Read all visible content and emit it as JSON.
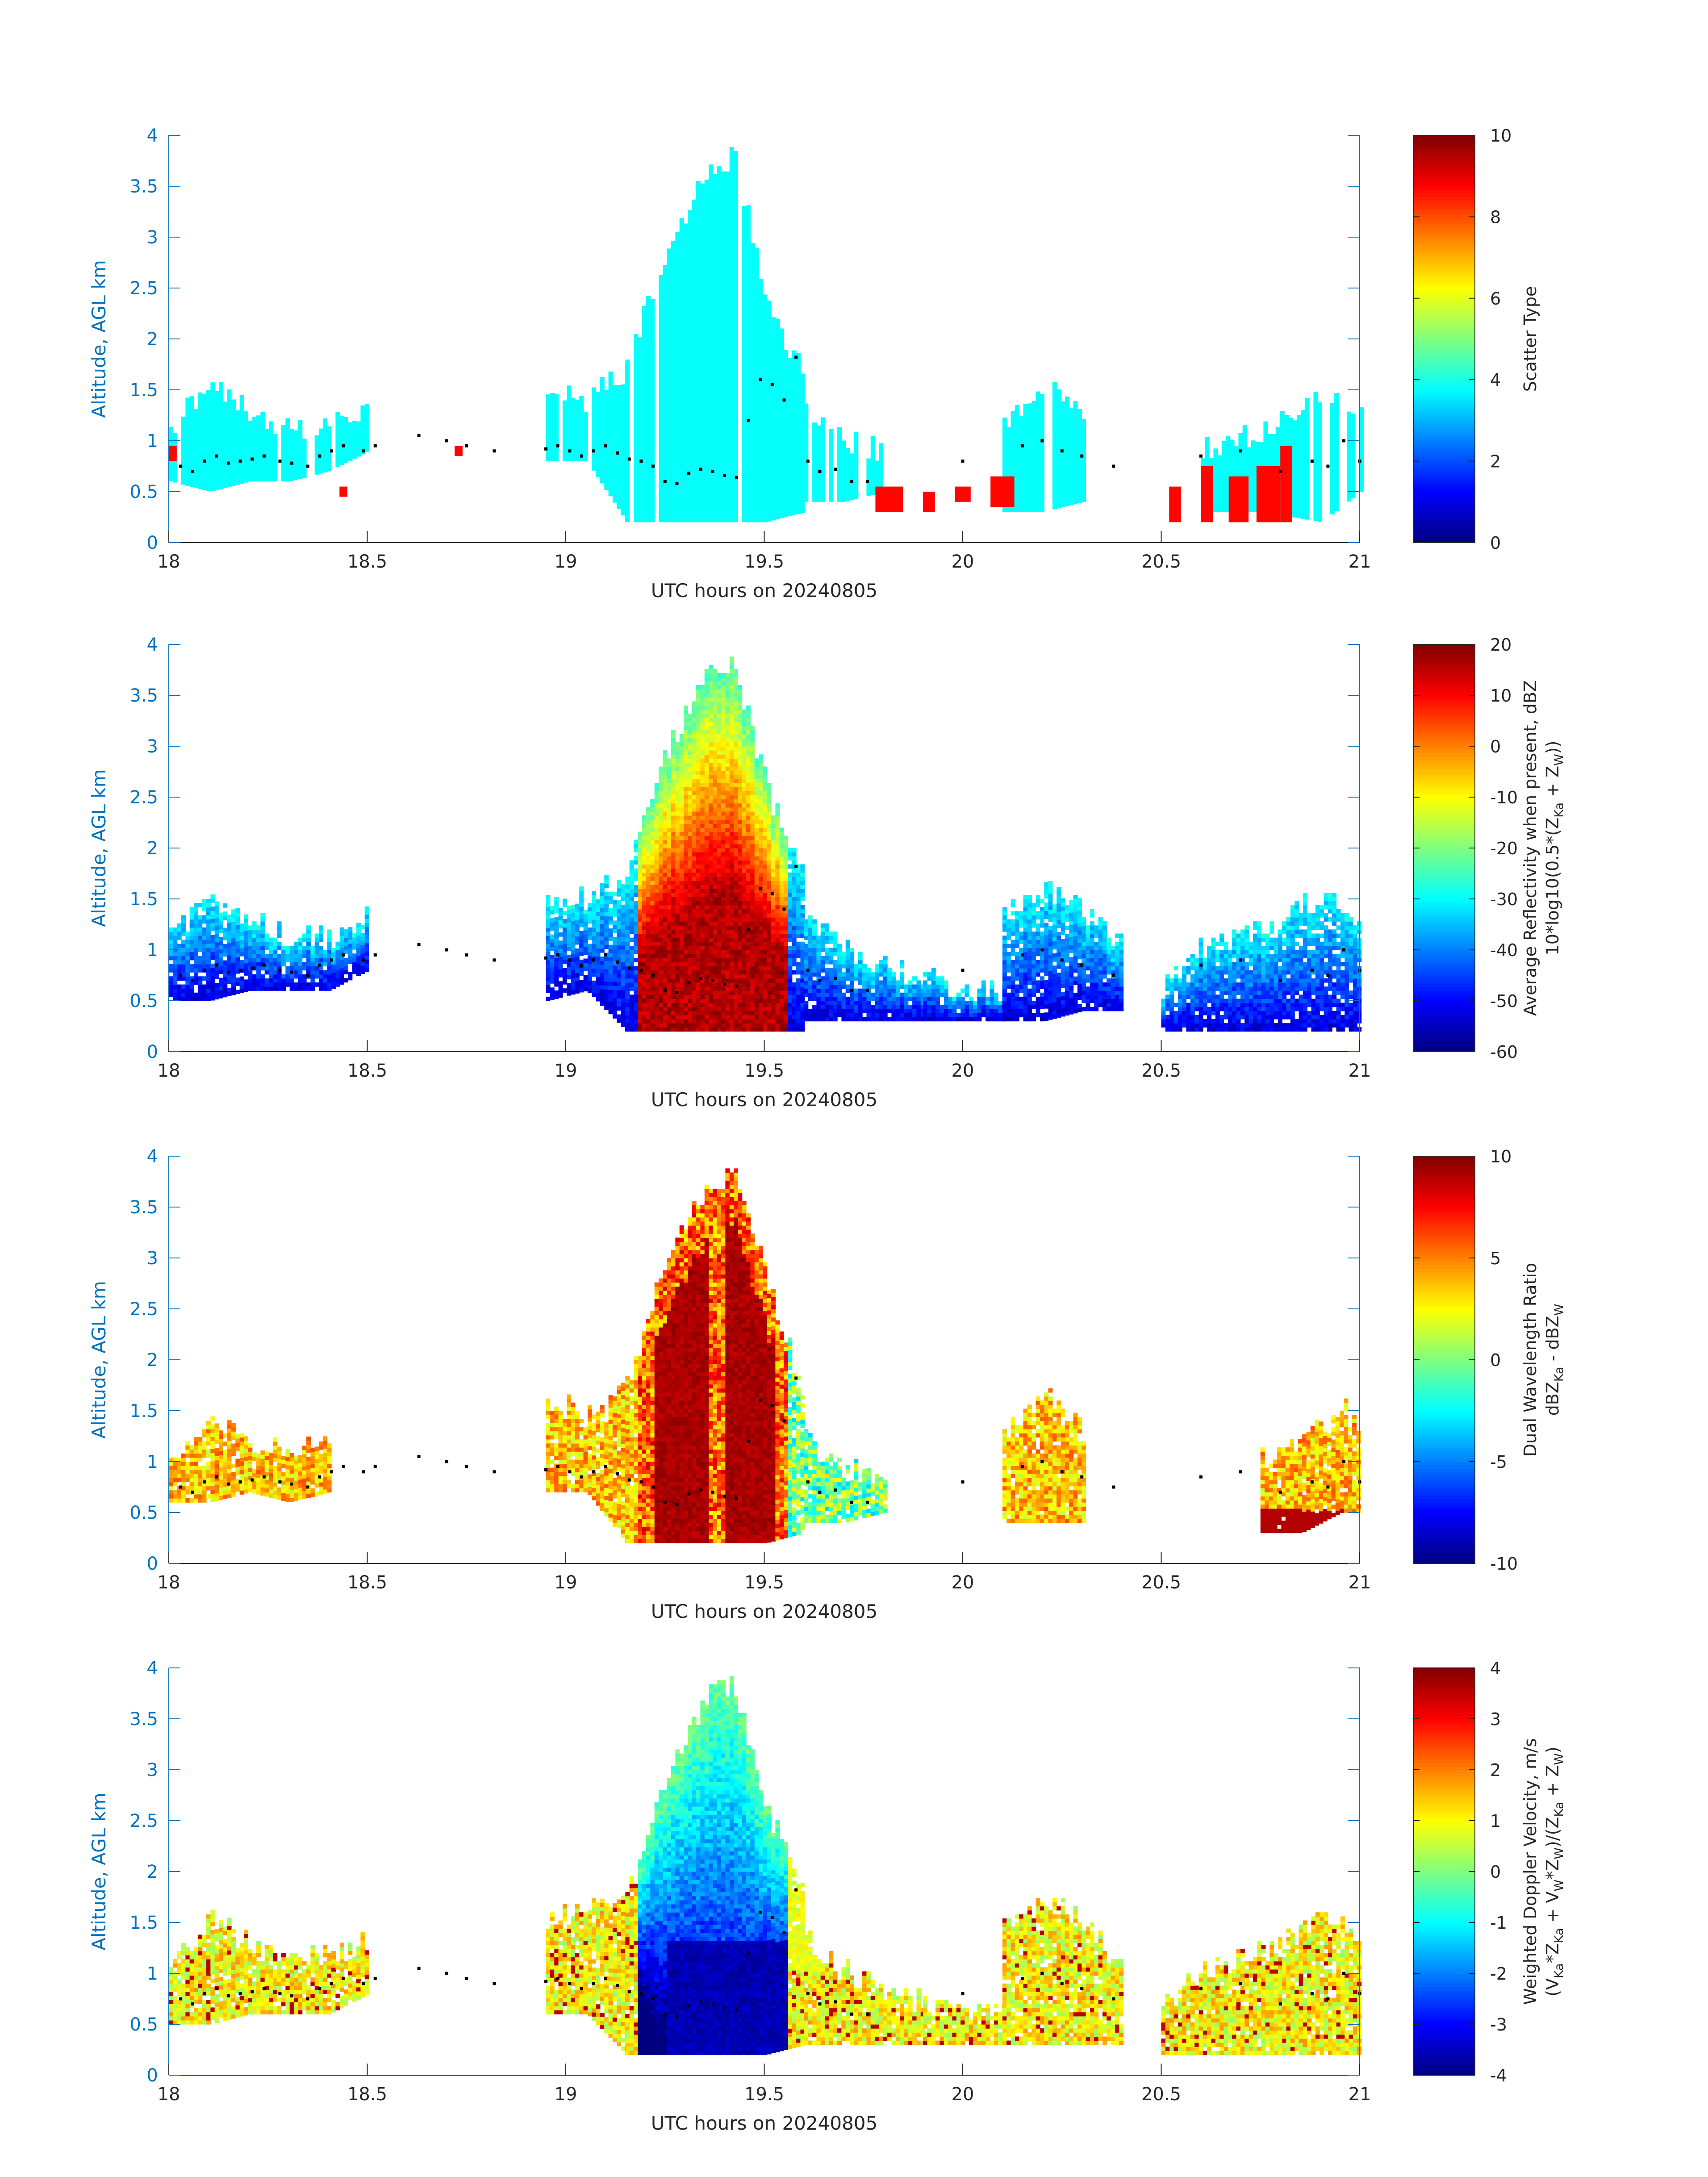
{
  "figure": {
    "axis_color": "#0072BD",
    "colormap": "jet",
    "marker_color": "#000000"
  },
  "chart_data": [
    {
      "type": "heatmap",
      "title": "",
      "xlabel": "UTC hours on 20240805",
      "ylabel": "Altitude, AGL km",
      "xlim": [
        18,
        21
      ],
      "ylim": [
        0,
        4
      ],
      "xticks": [
        "18",
        "18.5",
        "19",
        "19.5",
        "20",
        "20.5",
        "21"
      ],
      "yticks": [
        "0",
        "0.5",
        "1",
        "1.5",
        "2",
        "2.5",
        "3",
        "3.5",
        "4"
      ],
      "colorbar": {
        "label_lines": [
          "Scatter Type"
        ],
        "range": [
          0,
          10
        ],
        "ticks": [
          "0",
          "2",
          "4",
          "6",
          "8",
          "10"
        ]
      },
      "field": "scatter_type",
      "cloud_layers": [
        {
          "x": [
            18.0,
            18.1,
            18.2,
            18.3,
            18.4,
            18.5
          ],
          "base": [
            0.6,
            0.5,
            0.6,
            0.6,
            0.7,
            0.9
          ],
          "top": [
            1.1,
            1.6,
            1.3,
            1.1,
            1.2,
            1.3
          ]
        },
        {
          "x": [
            18.95,
            19.05,
            19.15
          ],
          "base": [
            0.8,
            0.8,
            0.2
          ],
          "top": [
            1.5,
            1.4,
            1.7
          ]
        },
        {
          "x": [
            19.15,
            19.25,
            19.35,
            19.42,
            19.5,
            19.6
          ],
          "base": [
            0.2,
            0.2,
            0.2,
            0.2,
            0.2,
            0.3
          ],
          "top": [
            1.7,
            2.9,
            3.6,
            3.8,
            2.4,
            1.6
          ]
        },
        {
          "x": [
            19.6,
            19.7,
            19.8
          ],
          "base": [
            0.4,
            0.4,
            0.5
          ],
          "top": [
            1.3,
            1.0,
            0.9
          ]
        },
        {
          "x": [
            20.1,
            20.2,
            20.3
          ],
          "base": [
            0.3,
            0.3,
            0.4
          ],
          "top": [
            1.2,
            1.6,
            1.3
          ]
        },
        {
          "x": [
            20.6,
            20.75,
            20.9,
            21.0
          ],
          "base": [
            0.3,
            0.3,
            0.2,
            0.5
          ],
          "top": [
            0.9,
            1.1,
            1.4,
            1.3
          ]
        }
      ],
      "rain_cells": [
        {
          "x": [
            18.0,
            18.02
          ],
          "base": 0.8,
          "top": 0.95
        },
        {
          "x": [
            18.43,
            18.45
          ],
          "base": 0.45,
          "top": 0.55
        },
        {
          "x": [
            18.72,
            18.74
          ],
          "base": 0.85,
          "top": 0.95
        },
        {
          "x": [
            19.78,
            19.85
          ],
          "base": 0.3,
          "top": 0.55
        },
        {
          "x": [
            19.9,
            19.93
          ],
          "base": 0.3,
          "top": 0.5
        },
        {
          "x": [
            19.98,
            20.02
          ],
          "base": 0.4,
          "top": 0.55
        },
        {
          "x": [
            20.07,
            20.13
          ],
          "base": 0.35,
          "top": 0.65
        },
        {
          "x": [
            20.52,
            20.55
          ],
          "base": 0.2,
          "top": 0.55
        },
        {
          "x": [
            20.6,
            20.63
          ],
          "base": 0.2,
          "top": 0.75
        },
        {
          "x": [
            20.67,
            20.72
          ],
          "base": 0.2,
          "top": 0.65
        },
        {
          "x": [
            20.74,
            20.8
          ],
          "base": 0.2,
          "top": 0.75
        },
        {
          "x": [
            20.8,
            20.83
          ],
          "base": 0.2,
          "top": 0.95
        }
      ]
    },
    {
      "type": "heatmap",
      "title": "",
      "xlabel": "UTC hours on 20240805",
      "ylabel": "Altitude, AGL km",
      "xlim": [
        18,
        21
      ],
      "ylim": [
        0,
        4
      ],
      "xticks": [
        "18",
        "18.5",
        "19",
        "19.5",
        "20",
        "20.5",
        "21"
      ],
      "yticks": [
        "0",
        "0.5",
        "1",
        "1.5",
        "2",
        "2.5",
        "3",
        "3.5",
        "4"
      ],
      "colorbar": {
        "label_lines": [
          "Average Reflectivity when present, dBZ",
          "10*log10(0.5*(Z",
          "Ka",
          " + Z",
          "W",
          "))"
        ],
        "range": [
          -60,
          20
        ],
        "ticks": [
          "-60",
          "-50",
          "-40",
          "-30",
          "-20",
          "-10",
          "0",
          "10",
          "20"
        ]
      },
      "field": "reflectivity_dBZ",
      "cloud_layers": [
        {
          "x": [
            18.0,
            18.1,
            18.2,
            18.3,
            18.4,
            18.5
          ],
          "base": [
            0.5,
            0.5,
            0.6,
            0.6,
            0.6,
            0.8
          ],
          "top": [
            1.1,
            1.5,
            1.3,
            1.1,
            1.1,
            1.3
          ]
        },
        {
          "x": [
            18.95,
            19.05,
            19.15
          ],
          "base": [
            0.5,
            0.6,
            0.2
          ],
          "top": [
            1.4,
            1.5,
            1.7
          ]
        },
        {
          "x": [
            19.15,
            19.25,
            19.35,
            19.42,
            19.5,
            19.6
          ],
          "base": [
            0.2,
            0.2,
            0.2,
            0.2,
            0.2,
            0.2
          ],
          "top": [
            1.7,
            2.9,
            3.7,
            3.8,
            2.6,
            1.7
          ]
        },
        {
          "x": [
            19.6,
            19.7,
            19.8,
            19.9
          ],
          "base": [
            0.3,
            0.3,
            0.3,
            0.3
          ],
          "top": [
            1.3,
            1.0,
            0.8,
            0.7
          ]
        },
        {
          "x": [
            19.9,
            20.0,
            20.1
          ],
          "base": [
            0.3,
            0.3,
            0.3
          ],
          "top": [
            0.7,
            0.6,
            0.6
          ]
        },
        {
          "x": [
            20.1,
            20.2,
            20.3,
            20.4
          ],
          "base": [
            0.3,
            0.3,
            0.4,
            0.4
          ],
          "top": [
            1.3,
            1.6,
            1.4,
            1.0
          ]
        },
        {
          "x": [
            20.5,
            20.6,
            20.75,
            20.9,
            21.0
          ],
          "base": [
            0.2,
            0.2,
            0.2,
            0.2,
            0.2
          ],
          "top": [
            0.6,
            1.0,
            1.2,
            1.5,
            1.3
          ]
        }
      ]
    },
    {
      "type": "heatmap",
      "title": "",
      "xlabel": "UTC hours on 20240805",
      "ylabel": "Altitude, AGL km",
      "xlim": [
        18,
        21
      ],
      "ylim": [
        0,
        4
      ],
      "xticks": [
        "18",
        "18.5",
        "19",
        "19.5",
        "20",
        "20.5",
        "21"
      ],
      "yticks": [
        "0",
        "0.5",
        "1",
        "1.5",
        "2",
        "2.5",
        "3",
        "3.5",
        "4"
      ],
      "colorbar": {
        "label_lines": [
          "Dual Wavelength Ratio",
          "dBZ",
          "Ka",
          " - dBZ",
          "W"
        ],
        "range": [
          -10,
          10
        ],
        "ticks": [
          "-10",
          "-5",
          "0",
          "5",
          "10"
        ]
      },
      "field": "dual_wavelength_ratio",
      "cloud_layers": [
        {
          "x": [
            18.0,
            18.1,
            18.2,
            18.3,
            18.4
          ],
          "base": [
            0.6,
            0.6,
            0.7,
            0.6,
            0.7
          ],
          "top": [
            1.0,
            1.4,
            1.2,
            1.1,
            1.1
          ]
        },
        {
          "x": [
            18.95,
            19.05,
            19.15
          ],
          "base": [
            0.7,
            0.7,
            0.2
          ],
          "top": [
            1.5,
            1.5,
            1.7
          ]
        },
        {
          "x": [
            19.15,
            19.25,
            19.35,
            19.42,
            19.5,
            19.6
          ],
          "base": [
            0.2,
            0.2,
            0.2,
            0.2,
            0.2,
            0.3
          ],
          "top": [
            1.7,
            3.0,
            3.7,
            3.8,
            2.8,
            1.6
          ]
        },
        {
          "x": [
            19.6,
            19.7,
            19.8
          ],
          "base": [
            0.4,
            0.4,
            0.5
          ],
          "top": [
            1.2,
            0.9,
            0.8
          ]
        },
        {
          "x": [
            20.1,
            20.2,
            20.3
          ],
          "base": [
            0.4,
            0.4,
            0.4
          ],
          "top": [
            1.2,
            1.7,
            1.3
          ]
        },
        {
          "x": [
            20.75,
            20.85,
            20.95,
            21.0
          ],
          "base": [
            0.3,
            0.3,
            0.5,
            0.5
          ],
          "top": [
            1.0,
            1.2,
            1.5,
            1.3
          ]
        }
      ]
    },
    {
      "type": "heatmap",
      "title": "",
      "xlabel": "UTC hours on 20240805",
      "ylabel": "Altitude, AGL km",
      "xlim": [
        18,
        21
      ],
      "ylim": [
        0,
        4
      ],
      "xticks": [
        "18",
        "18.5",
        "19",
        "19.5",
        "20",
        "20.5",
        "21"
      ],
      "yticks": [
        "0",
        "0.5",
        "1",
        "1.5",
        "2",
        "2.5",
        "3",
        "3.5",
        "4"
      ],
      "colorbar": {
        "label_lines": [
          "Weighted Doppler Velocity, m/s",
          "(V",
          "Ka",
          "*Z",
          "Ka",
          " + V",
          "W",
          "*Z",
          "W",
          ")/(Z",
          "Ka",
          " + Z",
          "W",
          ")"
        ],
        "range": [
          -4,
          4
        ],
        "ticks": [
          "-4",
          "-3",
          "-2",
          "-1",
          "0",
          "1",
          "2",
          "3",
          "4"
        ]
      },
      "field": "weighted_doppler_velocity",
      "cloud_layers": [
        {
          "x": [
            18.0,
            18.1,
            18.2,
            18.3,
            18.4,
            18.5
          ],
          "base": [
            0.5,
            0.5,
            0.6,
            0.6,
            0.6,
            0.8
          ],
          "top": [
            1.1,
            1.5,
            1.3,
            1.1,
            1.2,
            1.3
          ]
        },
        {
          "x": [
            18.95,
            19.05,
            19.15
          ],
          "base": [
            0.6,
            0.6,
            0.2
          ],
          "top": [
            1.5,
            1.6,
            1.7
          ]
        },
        {
          "x": [
            19.15,
            19.25,
            19.35,
            19.42,
            19.5,
            19.6
          ],
          "base": [
            0.2,
            0.2,
            0.2,
            0.2,
            0.2,
            0.3
          ],
          "top": [
            1.7,
            2.9,
            3.7,
            3.8,
            2.6,
            1.8
          ]
        },
        {
          "x": [
            19.6,
            19.7,
            19.8,
            19.9
          ],
          "base": [
            0.3,
            0.3,
            0.3,
            0.3
          ],
          "top": [
            1.3,
            1.0,
            0.8,
            0.7
          ]
        },
        {
          "x": [
            19.9,
            20.0,
            20.1
          ],
          "base": [
            0.3,
            0.3,
            0.3
          ],
          "top": [
            0.7,
            0.6,
            0.6
          ]
        },
        {
          "x": [
            20.1,
            20.2,
            20.3,
            20.4
          ],
          "base": [
            0.3,
            0.3,
            0.3,
            0.3
          ],
          "top": [
            1.4,
            1.7,
            1.5,
            1.0
          ]
        },
        {
          "x": [
            20.5,
            20.6,
            20.75,
            20.9,
            21.0
          ],
          "base": [
            0.2,
            0.2,
            0.2,
            0.2,
            0.2
          ],
          "top": [
            0.6,
            1.0,
            1.2,
            1.5,
            1.4
          ]
        }
      ]
    }
  ],
  "cloud_base_markers": {
    "x": [
      18.03,
      18.06,
      18.09,
      18.12,
      18.15,
      18.18,
      18.21,
      18.24,
      18.28,
      18.31,
      18.35,
      18.38,
      18.41,
      18.44,
      18.49,
      18.52,
      18.63,
      18.7,
      18.75,
      18.82,
      18.95,
      18.98,
      19.01,
      19.04,
      19.07,
      19.1,
      19.13,
      19.16,
      19.19,
      19.22,
      19.25,
      19.28,
      19.31,
      19.34,
      19.37,
      19.4,
      19.43,
      19.46,
      19.49,
      19.52,
      19.55,
      19.58,
      19.61,
      19.64,
      19.68,
      19.72,
      19.76,
      20.0,
      20.15,
      20.2,
      20.25,
      20.3,
      20.38,
      20.6,
      20.7,
      20.8,
      20.88,
      20.92,
      20.96,
      21.0
    ],
    "y": [
      0.75,
      0.7,
      0.8,
      0.85,
      0.78,
      0.8,
      0.82,
      0.85,
      0.8,
      0.78,
      0.75,
      0.85,
      0.9,
      0.95,
      0.9,
      0.95,
      1.05,
      1.0,
      0.95,
      0.9,
      0.92,
      0.95,
      0.9,
      0.85,
      0.9,
      0.95,
      0.88,
      0.82,
      0.8,
      0.75,
      0.6,
      0.58,
      0.68,
      0.72,
      0.7,
      0.66,
      0.64,
      1.2,
      1.6,
      1.55,
      1.4,
      1.82,
      0.8,
      0.7,
      0.72,
      0.6,
      0.6,
      0.8,
      0.95,
      1.0,
      0.9,
      0.85,
      0.75,
      0.85,
      0.9,
      0.7,
      0.8,
      0.75,
      1.0,
      0.8
    ]
  }
}
